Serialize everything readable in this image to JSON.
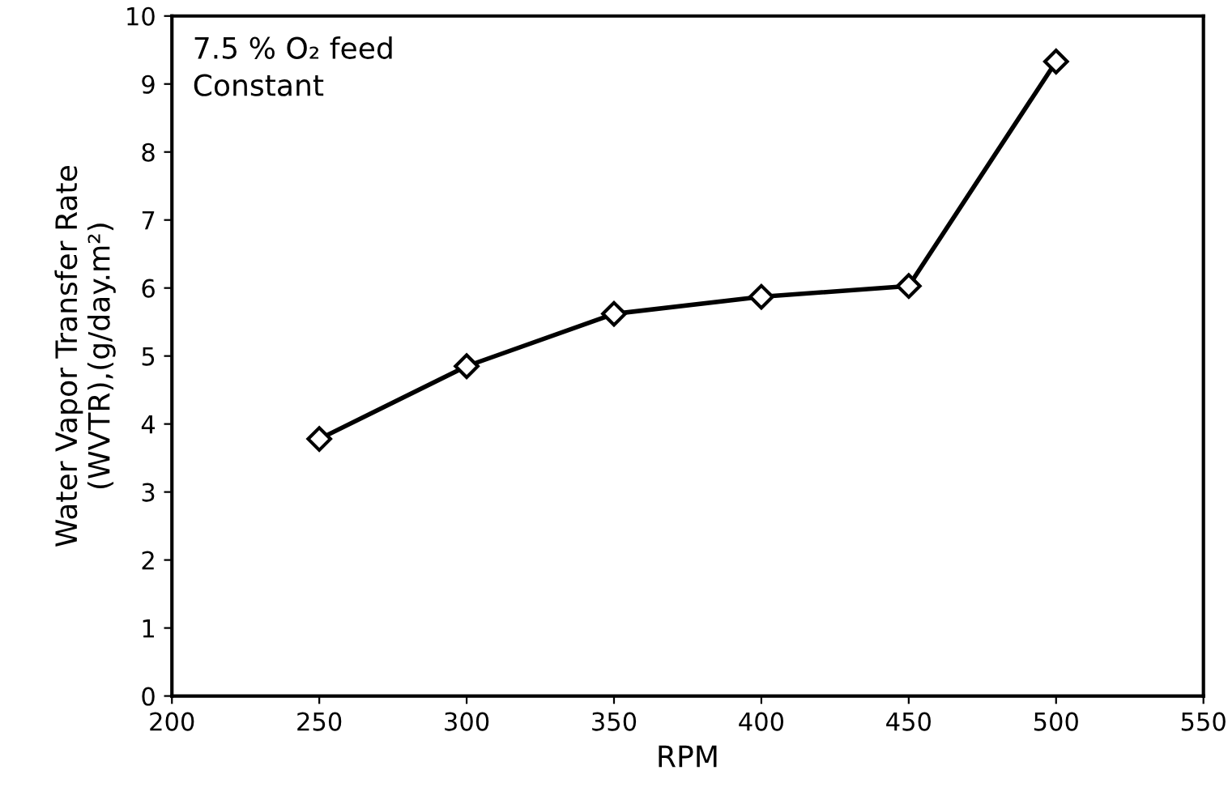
{
  "chart_data": {
    "type": "line",
    "xlabel": "RPM",
    "ylabel": "Water Vapor Transfer Rate\n(WVTR),(g/day.m²)",
    "annotations": [
      "7.5 % O₂ feed\nConstant"
    ],
    "x": [
      250,
      300,
      350,
      400,
      450,
      500
    ],
    "series": [
      {
        "color": "#000000",
        "values": [
          3.78,
          4.85,
          5.62,
          5.87,
          6.03,
          9.33
        ]
      }
    ],
    "xlim": [
      200,
      550
    ],
    "xticks": [
      200,
      250,
      300,
      350,
      400,
      450,
      500,
      550
    ],
    "ylim": [
      0,
      10
    ],
    "yticks": [
      0,
      1,
      2,
      3,
      4,
      5,
      6,
      7,
      8,
      9,
      10
    ],
    "grid": false,
    "legend": false,
    "marker": "diamond",
    "line_style": "solid"
  }
}
